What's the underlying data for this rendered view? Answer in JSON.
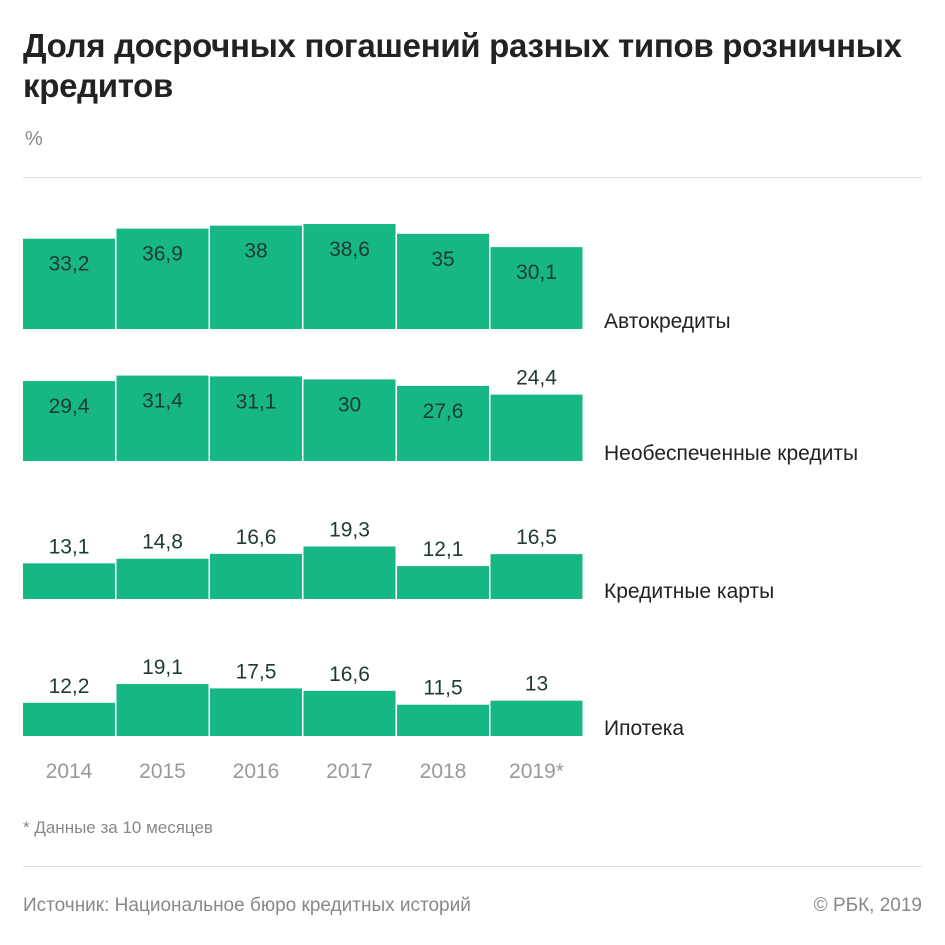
{
  "chart_data": {
    "type": "bar",
    "title": "Доля досрочных погашений разных типов розничных кредитов",
    "unit": "%",
    "categories": [
      "2014",
      "2015",
      "2016",
      "2017",
      "2018",
      "2019*"
    ],
    "color": "#16b785",
    "series": [
      {
        "name": "Автокредиты",
        "values": [
          33.2,
          36.9,
          38,
          38.6,
          35,
          30.1
        ],
        "labels": [
          "33,2",
          "36,9",
          "38",
          "38,6",
          "35",
          "30,1"
        ]
      },
      {
        "name": "Необеспеченные кредиты",
        "values": [
          29.4,
          31.4,
          31.1,
          30,
          27.6,
          24.4
        ],
        "labels": [
          "29,4",
          "31,4",
          "31,1",
          "30",
          "27,6",
          "24,4"
        ]
      },
      {
        "name": "Кредитные карты",
        "values": [
          13.1,
          14.8,
          16.6,
          19.3,
          12.1,
          16.5
        ],
        "labels": [
          "13,1",
          "14,8",
          "16,6",
          "19,3",
          "12,1",
          "16,5"
        ]
      },
      {
        "name": "Ипотека",
        "values": [
          12.2,
          19.1,
          17.5,
          16.6,
          11.5,
          13
        ],
        "labels": [
          "12,2",
          "19,1",
          "17,5",
          "16,6",
          "11,5",
          "13"
        ]
      }
    ],
    "footnote": "* Данные за 10 месяцев",
    "source": "Источник: Национальное бюро кредитных историй",
    "copyright": "© РБК, 2019"
  }
}
